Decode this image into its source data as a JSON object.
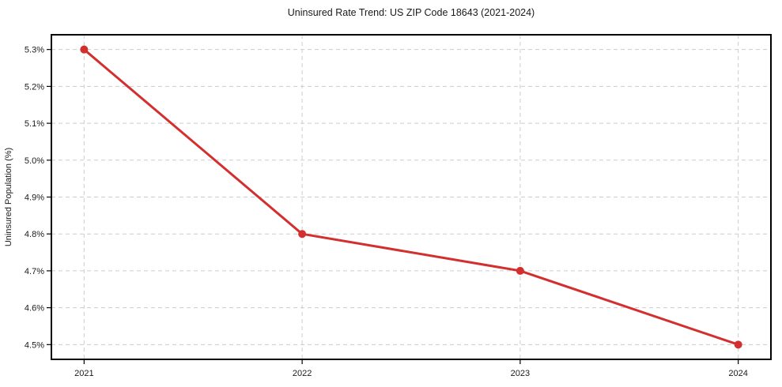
{
  "page": {
    "background": "#ffffff"
  },
  "chart_data": {
    "type": "line",
    "title": "Uninsured Rate Trend: US ZIP Code 18643 (2021-2024)",
    "xlabel": "",
    "ylabel": "Uninsured Population (%)",
    "x": [
      2021,
      2022,
      2023,
      2024
    ],
    "series": [
      {
        "name": "Uninsured rate",
        "values": [
          5.3,
          4.8,
          4.7,
          4.5
        ],
        "color": "#d32f2f",
        "marker": "circle",
        "line_width": 3,
        "marker_radius": 5
      }
    ],
    "xtick_labels": [
      "2021",
      "2022",
      "2023",
      "2024"
    ],
    "yticks": [
      4.5,
      4.6,
      4.7,
      4.8,
      4.9,
      5.0,
      5.1,
      5.2,
      5.3
    ],
    "ytick_labels": [
      "4.5%",
      "4.6%",
      "4.7%",
      "4.8%",
      "4.9%",
      "5.0%",
      "5.1%",
      "5.2%",
      "5.3%"
    ],
    "xlim": [
      2020.85,
      2024.15
    ],
    "ylim": [
      4.46,
      5.34
    ],
    "grid": {
      "show": true,
      "style": "dashed",
      "color": "#cccccc"
    },
    "legend": {
      "show": false
    },
    "axis_color": "#000000",
    "text_color": "#1a1a1a"
  }
}
